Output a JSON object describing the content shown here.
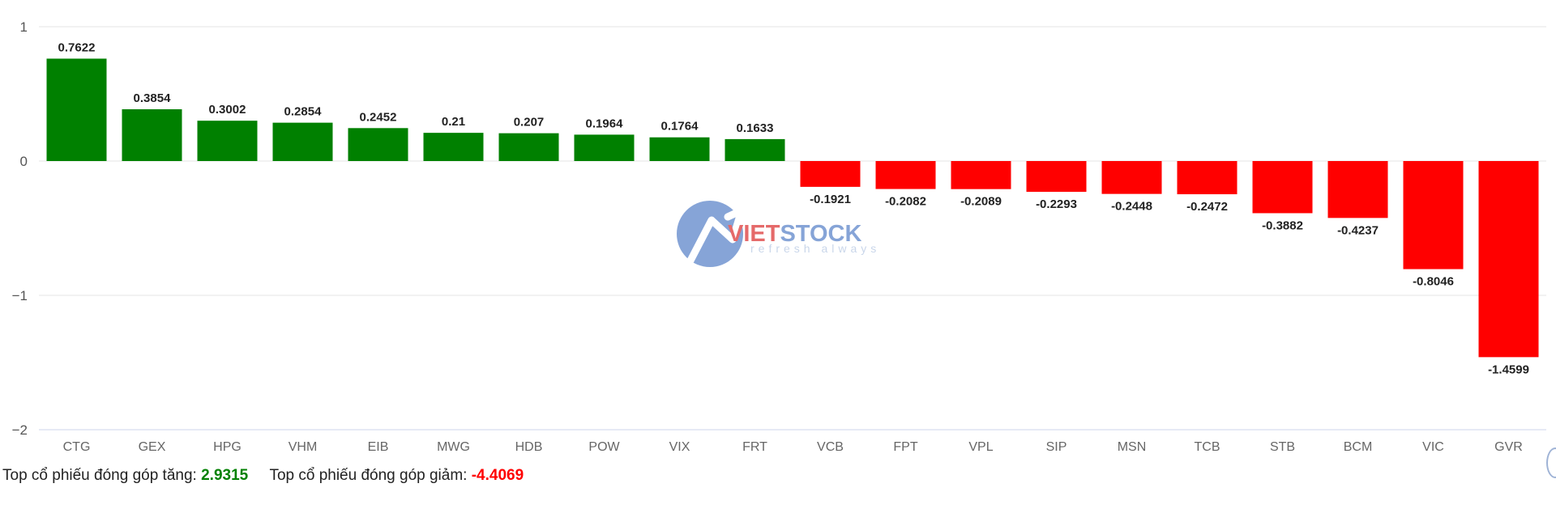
{
  "chart_data": {
    "type": "bar",
    "categories": [
      "CTG",
      "GEX",
      "HPG",
      "VHM",
      "EIB",
      "MWG",
      "HDB",
      "POW",
      "VIX",
      "FRT",
      "VCB",
      "FPT",
      "VPL",
      "SIP",
      "MSN",
      "TCB",
      "STB",
      "BCM",
      "VIC",
      "GVR"
    ],
    "values": [
      0.7622,
      0.3854,
      0.3002,
      0.2854,
      0.2452,
      0.21,
      0.207,
      0.1964,
      0.1764,
      0.1633,
      -0.1921,
      -0.2082,
      -0.2089,
      -0.2293,
      -0.2448,
      -0.2472,
      -0.3882,
      -0.4237,
      -0.8046,
      -1.4599
    ],
    "data_labels": [
      "0.7622",
      "0.3854",
      "0.3002",
      "0.2854",
      "0.2452",
      "0.21",
      "0.207",
      "0.1964",
      "0.1764",
      "0.1633",
      "-0.1921",
      "-0.2082",
      "-0.2089",
      "-0.2293",
      "-0.2448",
      "-0.2472",
      "-0.3882",
      "-0.4237",
      "-0.8046",
      "-1.4599"
    ],
    "yticks": [
      1,
      0,
      -1,
      -2
    ],
    "ytick_labels": [
      "1",
      "0",
      "−1",
      "−2"
    ],
    "ylim": [
      -2,
      1
    ],
    "grid": true,
    "legend": "none",
    "colors": {
      "positive": "#008000",
      "negative": "#ff0000"
    }
  },
  "watermark": {
    "brand": "VIETSTOCK",
    "tagline": "refresh always"
  },
  "summary": {
    "up_label": "Top cổ phiếu đóng góp tăng:",
    "up_value": "2.9315",
    "down_label": "Top cổ phiếu đóng góp giảm:",
    "down_value": "-4.4069",
    "up_color": "#008000",
    "down_color": "#ff0000"
  }
}
